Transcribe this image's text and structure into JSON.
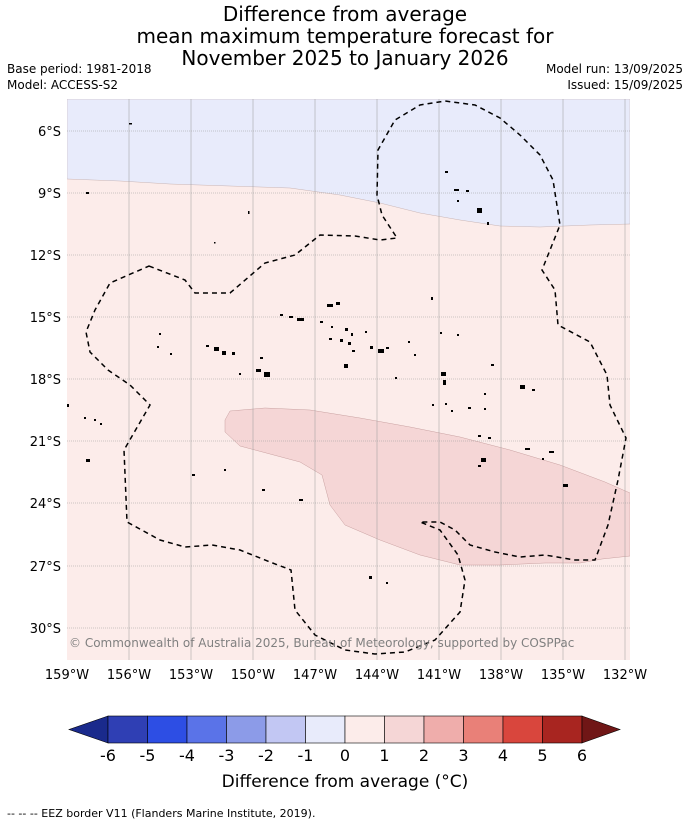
{
  "title": {
    "line1": "Difference from average",
    "line2": "mean maximum temperature forecast for",
    "line3": "November 2025 to January 2026"
  },
  "meta": {
    "base_period": "Base period: 1981-2018",
    "model": "Model: ACCESS-S2",
    "model_run": "Model run: 13/09/2025",
    "issued": "Issued: 15/09/2025"
  },
  "map": {
    "copyright": "© Commonwealth of Australia 2025, Bureau of Meteorology, supported by COSPPac",
    "lon_ticks": [
      "159°W",
      "156°W",
      "153°W",
      "150°W",
      "147°W",
      "144°W",
      "141°W",
      "138°W",
      "135°W",
      "132°W"
    ],
    "lat_ticks": [
      "6°S",
      "9°S",
      "12°S",
      "15°S",
      "18°S",
      "21°S",
      "24°S",
      "27°S",
      "30°S"
    ],
    "region_colors": {
      "minus_1_to_0": "#e8ebfb",
      "zero_to_1": "#fcecea",
      "one_to_2": "#f5d6d6"
    },
    "eez_border_style": "dashed"
  },
  "colorbar": {
    "title": "Difference from average (°C)",
    "ticks": [
      "-6",
      "-5",
      "-4",
      "-3",
      "-2",
      "-1",
      "0",
      "1",
      "2",
      "3",
      "4",
      "5",
      "6"
    ],
    "colors": [
      "#1a2a8c",
      "#2f3fb4",
      "#2d4ee4",
      "#5a73e8",
      "#8c9be8",
      "#c2c7f3",
      "#e8ebfb",
      "#fcecea",
      "#f5d6d6",
      "#efadab",
      "#e98078",
      "#d9463d",
      "#a82520",
      "#701616"
    ]
  },
  "footnote": "--  --  -- EEZ border V11 (Flanders Marine Institute, 2019)."
}
